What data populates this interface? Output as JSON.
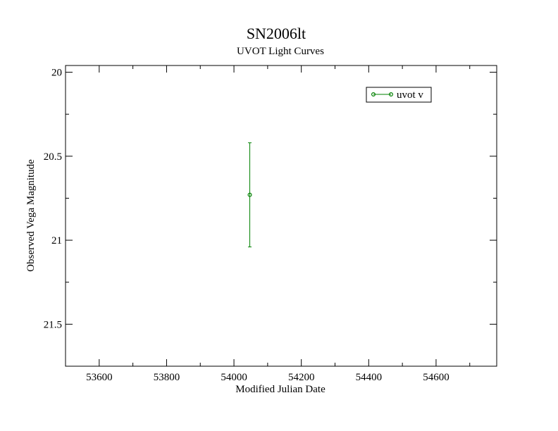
{
  "chart_data": {
    "type": "scatter",
    "title": "SN2006lt",
    "subtitle": "UVOT Light Curves",
    "xlabel": "Modified Julian Date",
    "ylabel": "Observed Vega Magnitude",
    "xlim": [
      53500,
      54780
    ],
    "ylim": [
      21.75,
      19.96
    ],
    "y_inverted": true,
    "x_ticks": [
      53600,
      53800,
      54000,
      54200,
      54400,
      54600
    ],
    "x_tick_labels": [
      "53600",
      "53800",
      "54000",
      "54200",
      "54400",
      "54600"
    ],
    "y_ticks": [
      20,
      20.5,
      21,
      21.5
    ],
    "y_tick_labels": [
      "20",
      "20.5",
      "21",
      "21.5"
    ],
    "grid": false,
    "legend_position": "top-right",
    "series": [
      {
        "name": "uvot v",
        "color": "#008000",
        "marker": "open-circle",
        "points": [
          {
            "x": 54047,
            "y": 20.73,
            "err_low": 20.42,
            "err_high": 21.04
          }
        ]
      }
    ]
  }
}
